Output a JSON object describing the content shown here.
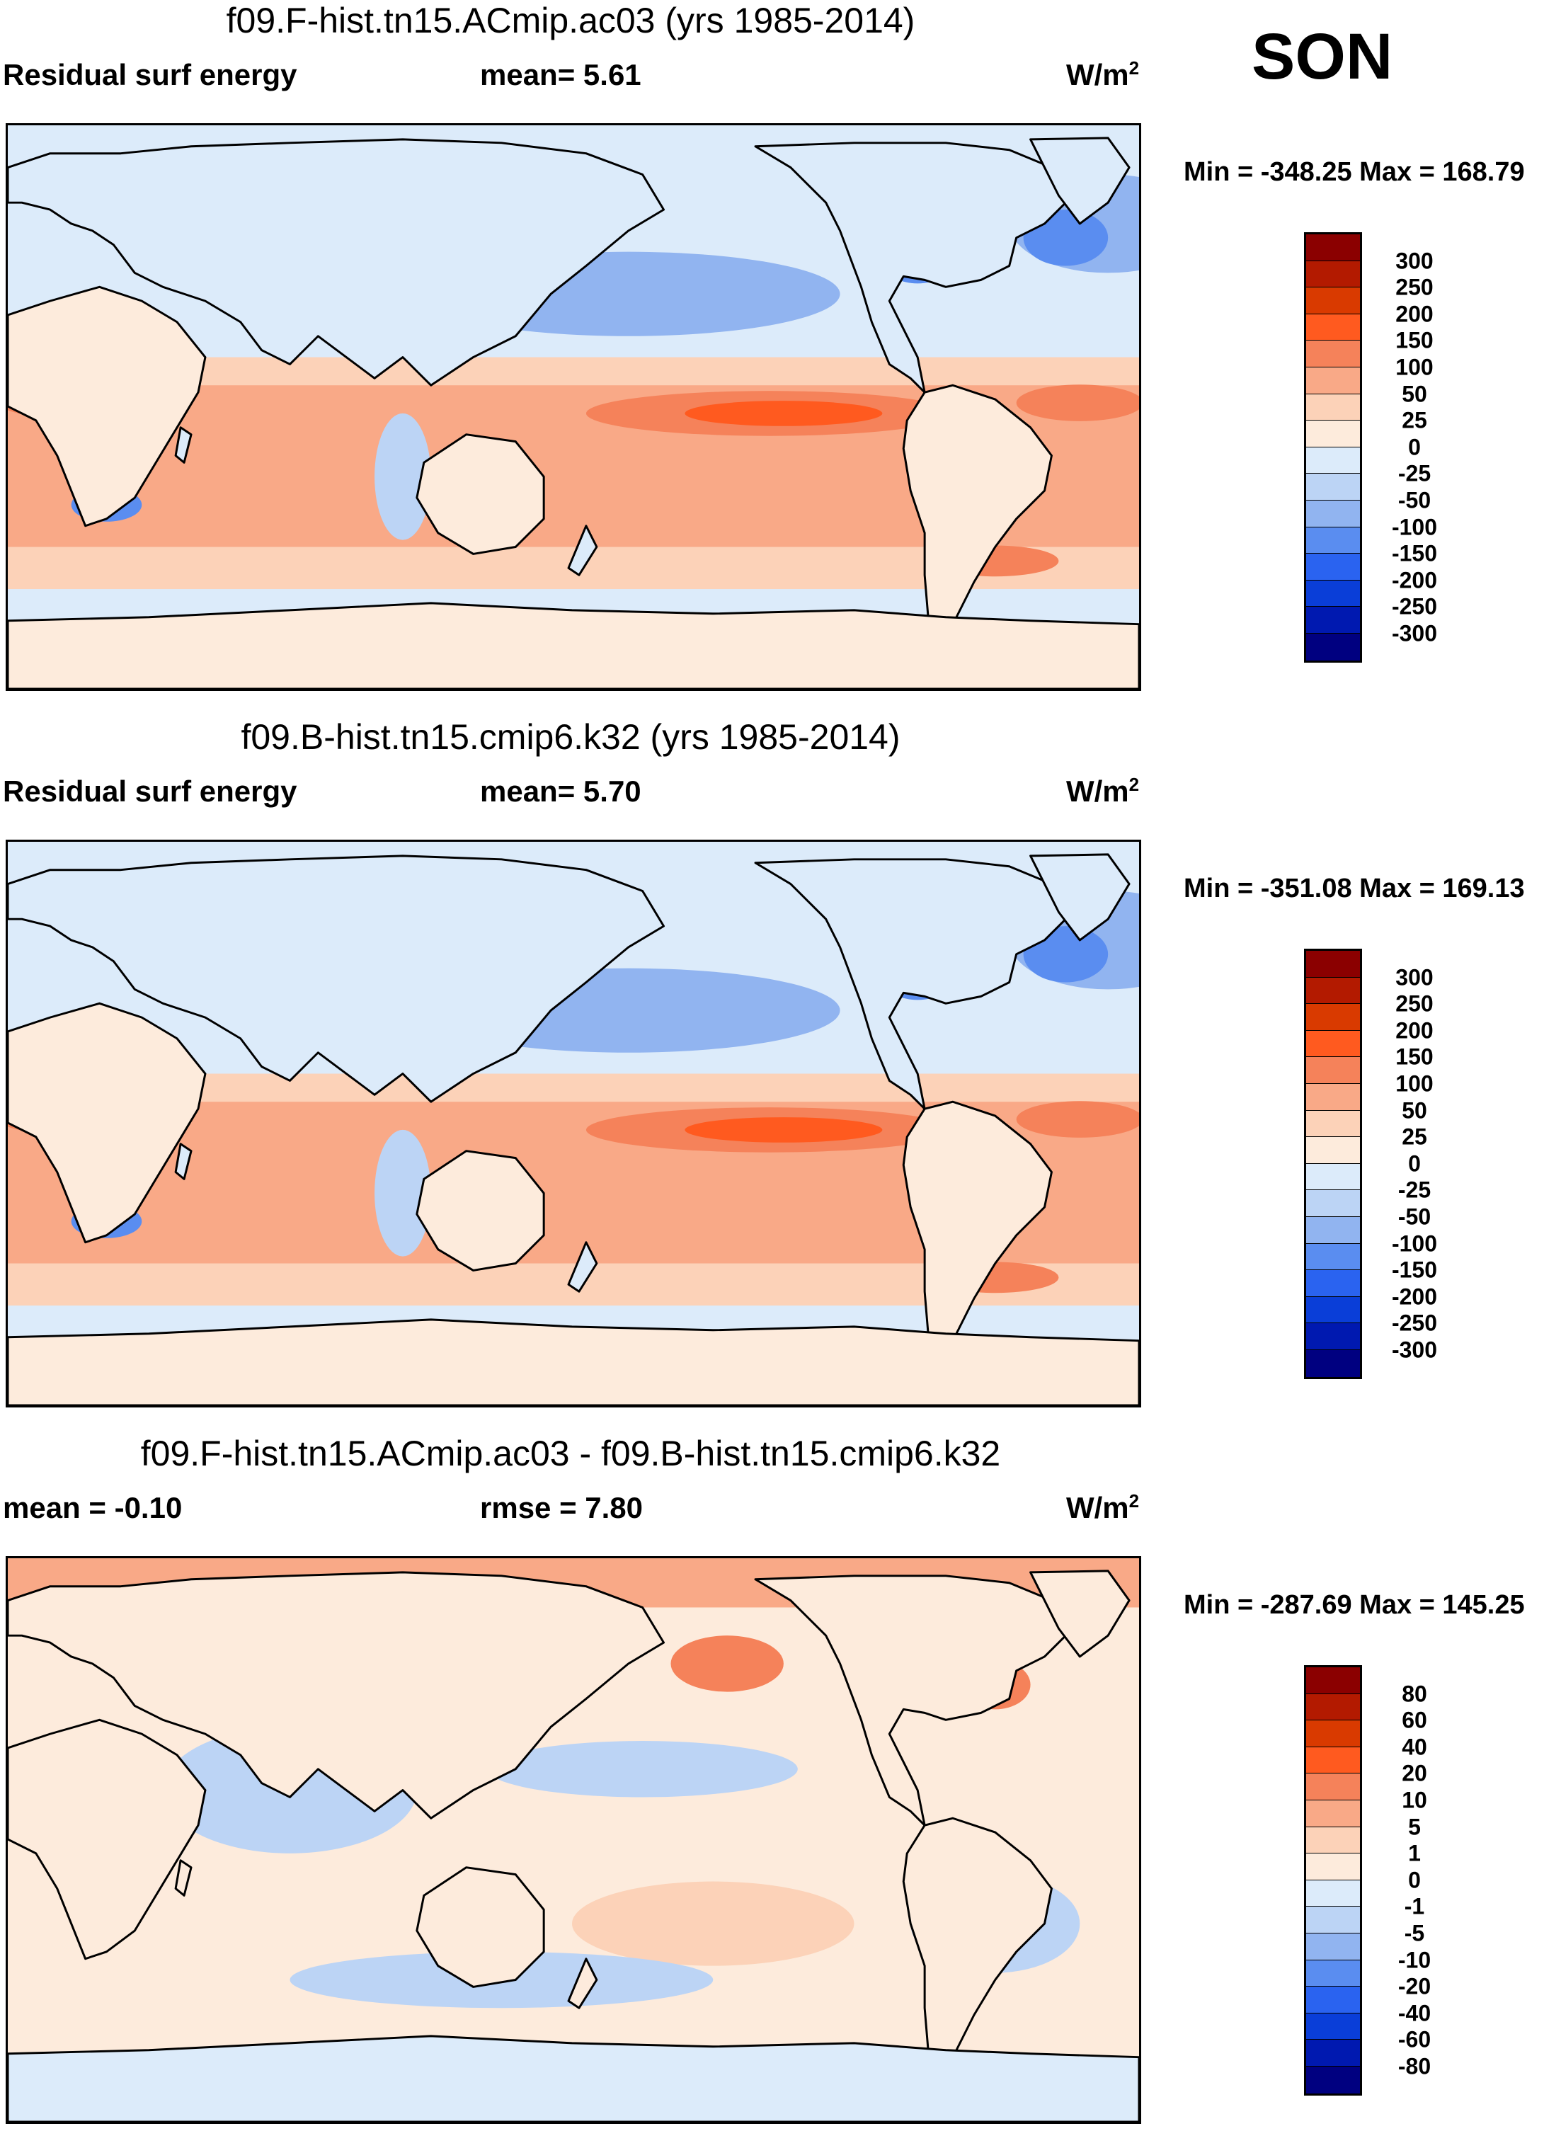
{
  "season": "SON",
  "units_base": "W/m",
  "units_exp": "2",
  "panels": [
    {
      "title": "f09.F-hist.tn15.ACmip.ac03 (yrs 1985-2014)",
      "left_label": "Residual surf energy",
      "mid_label": "mean=   5.61",
      "min_max": "Min = -348.25 Max = 168.79",
      "colorbar": {
        "levels": [
          "300",
          "250",
          "200",
          "150",
          "100",
          "50",
          "25",
          "0",
          "-25",
          "-50",
          "-100",
          "-150",
          "-200",
          "-250",
          "-300"
        ],
        "colors": [
          "#8b0000",
          "#b31a00",
          "#d93a00",
          "#ff5a1f",
          "#f5825a",
          "#f9a987",
          "#fcd2b8",
          "#fdebdc",
          "#dcebfa",
          "#bcd4f5",
          "#91b4f0",
          "#5a8df0",
          "#2a63f0",
          "#0a3ed8",
          "#0019b0",
          "#000080"
        ]
      },
      "map_style": "mean"
    },
    {
      "title": "f09.B-hist.tn15.cmip6.k32 (yrs 1985-2014)",
      "left_label": "Residual surf energy",
      "mid_label": "mean=   5.70",
      "min_max": "Min = -351.08 Max = 169.13",
      "colorbar": {
        "levels": [
          "300",
          "250",
          "200",
          "150",
          "100",
          "50",
          "25",
          "0",
          "-25",
          "-50",
          "-100",
          "-150",
          "-200",
          "-250",
          "-300"
        ],
        "colors": [
          "#8b0000",
          "#b31a00",
          "#d93a00",
          "#ff5a1f",
          "#f5825a",
          "#f9a987",
          "#fcd2b8",
          "#fdebdc",
          "#dcebfa",
          "#bcd4f5",
          "#91b4f0",
          "#5a8df0",
          "#2a63f0",
          "#0a3ed8",
          "#0019b0",
          "#000080"
        ]
      },
      "map_style": "mean"
    },
    {
      "title": "f09.F-hist.tn15.ACmip.ac03 - f09.B-hist.tn15.cmip6.k32",
      "left_label": "mean =  -0.10",
      "mid_label": "rmse =    7.80",
      "min_max": "Min = -287.69 Max = 145.25",
      "colorbar": {
        "levels": [
          "80",
          "60",
          "40",
          "20",
          "10",
          "5",
          "1",
          "0",
          "-1",
          "-5",
          "-10",
          "-20",
          "-40",
          "-60",
          "-80"
        ],
        "colors": [
          "#8b0000",
          "#b31a00",
          "#d93a00",
          "#ff5a1f",
          "#f5825a",
          "#f9a987",
          "#fcd2b8",
          "#fdebdc",
          "#dcebfa",
          "#bcd4f5",
          "#91b4f0",
          "#5a8df0",
          "#2a63f0",
          "#0a3ed8",
          "#0019b0",
          "#000080"
        ]
      },
      "map_style": "diff"
    }
  ]
}
